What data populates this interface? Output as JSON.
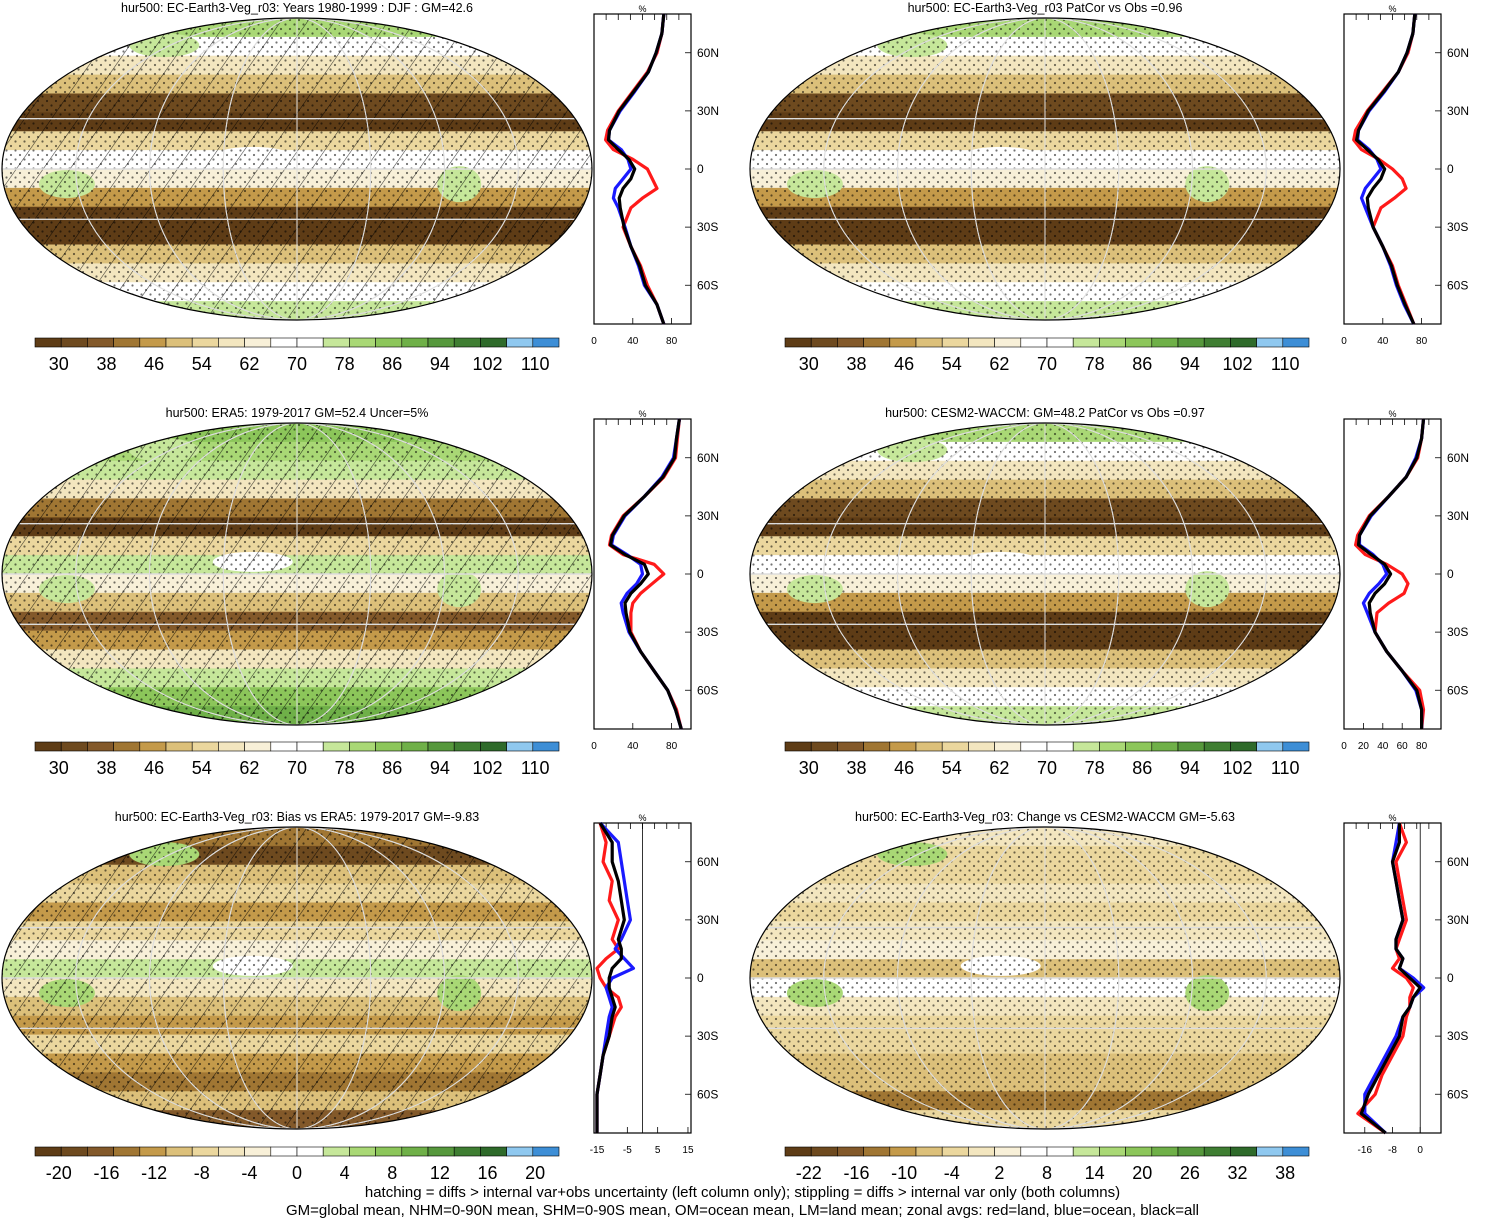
{
  "colors": {
    "red": "#ff1a1a",
    "blue": "#1a1aff",
    "black": "#000000",
    "frame": "#000000",
    "grid": "#cccccc"
  },
  "palette_abs": [
    "#5e3c16",
    "#6e4a1f",
    "#83592a",
    "#a07633",
    "#c49a4a",
    "#dcc07a",
    "#ebd79e",
    "#f3e6bf",
    "#f8f0d8",
    "#ffffff",
    "#ffffff",
    "#c6e79a",
    "#a9d875",
    "#8cc65a",
    "#6fb048",
    "#56983c",
    "#3f7e32",
    "#2e6a2a",
    "#8fc8ef",
    "#3d8ed6"
  ],
  "palette_diff": [
    "#5e3c16",
    "#6e4a1f",
    "#83592a",
    "#a07633",
    "#c49a4a",
    "#dcc07a",
    "#ebd79e",
    "#f3e6bf",
    "#f8f0d8",
    "#ffffff",
    "#ffffff",
    "#c6e79a",
    "#a9d875",
    "#8cc65a",
    "#6fb048",
    "#56983c",
    "#3f7e32",
    "#2e6a2a",
    "#8fc8ef",
    "#3d8ed6"
  ],
  "panels": [
    {
      "title": "hur500: EC-Earth3-Veg_r03: Years 1980-1999 : DJF : GM=42.6",
      "colorbar_ticks": [
        "30",
        "38",
        "46",
        "54",
        "62",
        "70",
        "78",
        "86",
        "94",
        "102",
        "110"
      ],
      "colorbar_kind": "abs",
      "map_style": "model_abs",
      "hatching": true
    },
    {
      "title": "hur500: EC-Earth3-Veg_r03 PatCor vs Obs =0.96",
      "colorbar_ticks": [
        "30",
        "38",
        "46",
        "54",
        "62",
        "70",
        "78",
        "86",
        "94",
        "102",
        "110"
      ],
      "colorbar_kind": "abs",
      "map_style": "model_abs",
      "hatching": false
    },
    {
      "title": "hur500: ERA5: 1979-2017 GM=52.4 Uncer=5%",
      "colorbar_ticks": [
        "30",
        "38",
        "46",
        "54",
        "62",
        "70",
        "78",
        "86",
        "94",
        "102",
        "110"
      ],
      "colorbar_kind": "abs",
      "map_style": "obs_abs",
      "hatching": true
    },
    {
      "title": "hur500: CESM2-WACCM: GM=48.2 PatCor vs Obs =0.97",
      "colorbar_ticks": [
        "30",
        "38",
        "46",
        "54",
        "62",
        "70",
        "78",
        "86",
        "94",
        "102",
        "110"
      ],
      "colorbar_kind": "abs",
      "map_style": "model_abs",
      "hatching": false
    },
    {
      "title": "hur500: EC-Earth3-Veg_r03: Bias vs ERA5: 1979-2017 GM=-9.83",
      "colorbar_ticks": [
        "-20",
        "-16",
        "-12",
        "-8",
        "-4",
        "0",
        "4",
        "8",
        "12",
        "16",
        "20"
      ],
      "colorbar_kind": "diff",
      "map_style": "bias",
      "hatching": true
    },
    {
      "title": "hur500: EC-Earth3-Veg_r03: Change vs CESM2-WACCM GM=-5.63",
      "colorbar_ticks": [
        "-22",
        "-16",
        "-10",
        "-4",
        "2",
        "8",
        "14",
        "20",
        "26",
        "32",
        "38"
      ],
      "colorbar_kind": "diff",
      "map_style": "change",
      "hatching": false
    }
  ],
  "chart_data": [
    {
      "type": "line",
      "title": "%",
      "y_tick_labels": [
        "60N",
        "30N",
        "0",
        "30S",
        "60S"
      ],
      "y_tick_lats": [
        60,
        30,
        0,
        -30,
        -60
      ],
      "x_tick_labels": [
        "0",
        "40",
        "80"
      ],
      "x_tick_values": [
        0,
        40,
        80
      ],
      "xlim": [
        0,
        100
      ],
      "ylim": [
        -80,
        80
      ],
      "lat": [
        80,
        70,
        60,
        50,
        40,
        30,
        20,
        15,
        10,
        5,
        0,
        -5,
        -10,
        -15,
        -20,
        -30,
        -40,
        -50,
        -60,
        -70,
        -80
      ],
      "series": [
        {
          "color_key": "red",
          "values": [
            72,
            70,
            65,
            55,
            40,
            25,
            14,
            12,
            20,
            40,
            55,
            60,
            65,
            50,
            38,
            30,
            38,
            48,
            55,
            65,
            72
          ]
        },
        {
          "color_key": "blue",
          "values": [
            72,
            70,
            64,
            56,
            42,
            27,
            16,
            15,
            28,
            35,
            38,
            30,
            22,
            20,
            25,
            32,
            38,
            46,
            52,
            65,
            72
          ]
        },
        {
          "color_key": "black",
          "values": [
            72,
            70,
            64,
            56,
            41,
            26,
            16,
            15,
            25,
            36,
            42,
            38,
            30,
            26,
            27,
            31,
            38,
            47,
            53,
            65,
            72
          ]
        }
      ]
    },
    {
      "type": "line",
      "title": "%",
      "y_tick_labels": [
        "60N",
        "30N",
        "0",
        "30S",
        "60S"
      ],
      "y_tick_lats": [
        60,
        30,
        0,
        -30,
        -60
      ],
      "x_tick_labels": [
        "0",
        "40",
        "80"
      ],
      "x_tick_values": [
        0,
        40,
        80
      ],
      "xlim": [
        0,
        100
      ],
      "ylim": [
        -80,
        80
      ],
      "lat": [
        80,
        70,
        60,
        50,
        40,
        30,
        20,
        15,
        10,
        5,
        0,
        -5,
        -10,
        -15,
        -20,
        -30,
        -40,
        -50,
        -60,
        -70,
        -80
      ],
      "series": [
        {
          "color_key": "red",
          "values": [
            73,
            71,
            66,
            56,
            40,
            24,
            12,
            10,
            18,
            36,
            50,
            60,
            64,
            52,
            38,
            30,
            40,
            50,
            56,
            64,
            72
          ]
        },
        {
          "color_key": "blue",
          "values": [
            73,
            71,
            65,
            56,
            42,
            26,
            15,
            14,
            26,
            34,
            38,
            30,
            22,
            18,
            22,
            30,
            40,
            48,
            54,
            62,
            72
          ]
        },
        {
          "color_key": "black",
          "values": [
            73,
            71,
            65,
            56,
            41,
            25,
            15,
            13,
            24,
            35,
            42,
            38,
            30,
            24,
            25,
            30,
            40,
            49,
            55,
            63,
            72
          ]
        }
      ]
    },
    {
      "type": "line",
      "title": "%",
      "y_tick_labels": [
        "60N",
        "30N",
        "0",
        "30S",
        "60S"
      ],
      "y_tick_lats": [
        60,
        30,
        0,
        -30,
        -60
      ],
      "x_tick_labels": [
        "0",
        "40",
        "80"
      ],
      "x_tick_values": [
        0,
        40,
        80
      ],
      "xlim": [
        0,
        100
      ],
      "ylim": [
        -80,
        80
      ],
      "lat": [
        80,
        70,
        60,
        50,
        40,
        30,
        20,
        15,
        10,
        5,
        0,
        -5,
        -10,
        -15,
        -20,
        -30,
        -40,
        -50,
        -60,
        -70,
        -80
      ],
      "series": [
        {
          "color_key": "red",
          "values": [
            88,
            86,
            84,
            72,
            52,
            30,
            18,
            16,
            30,
            62,
            72,
            60,
            48,
            40,
            38,
            38,
            48,
            62,
            76,
            85,
            90
          ]
        },
        {
          "color_key": "blue",
          "values": [
            88,
            85,
            82,
            70,
            52,
            32,
            20,
            18,
            34,
            48,
            50,
            44,
            34,
            28,
            30,
            36,
            48,
            62,
            76,
            84,
            90
          ]
        },
        {
          "color_key": "black",
          "values": [
            88,
            85,
            83,
            71,
            52,
            31,
            19,
            17,
            32,
            52,
            56,
            48,
            38,
            32,
            33,
            37,
            48,
            62,
            76,
            84,
            90
          ]
        }
      ]
    },
    {
      "type": "line",
      "title": "%",
      "y_tick_labels": [
        "60N",
        "30N",
        "0",
        "30S",
        "60S"
      ],
      "y_tick_lats": [
        60,
        30,
        0,
        -30,
        -60
      ],
      "x_tick_labels": [
        "0",
        "20",
        "40",
        "60",
        "80"
      ],
      "x_tick_values": [
        0,
        20,
        40,
        60,
        80
      ],
      "xlim": [
        0,
        100
      ],
      "ylim": [
        -80,
        80
      ],
      "lat": [
        80,
        70,
        60,
        50,
        40,
        30,
        20,
        15,
        10,
        5,
        0,
        -5,
        -10,
        -15,
        -20,
        -30,
        -40,
        -50,
        -60,
        -70,
        -80
      ],
      "series": [
        {
          "color_key": "red",
          "values": [
            82,
            80,
            76,
            64,
            46,
            26,
            14,
            12,
            22,
            44,
            60,
            66,
            62,
            46,
            34,
            32,
            44,
            60,
            78,
            82,
            80
          ]
        },
        {
          "color_key": "blue",
          "values": [
            82,
            80,
            74,
            64,
            46,
            28,
            16,
            16,
            30,
            40,
            44,
            36,
            26,
            20,
            24,
            32,
            44,
            60,
            74,
            80,
            80
          ]
        },
        {
          "color_key": "black",
          "values": [
            82,
            80,
            75,
            64,
            46,
            27,
            16,
            15,
            28,
            42,
            48,
            42,
            32,
            26,
            27,
            32,
            44,
            60,
            75,
            80,
            80
          ]
        }
      ]
    },
    {
      "type": "line",
      "title": "%",
      "y_tick_labels": [
        "60N",
        "30N",
        "0",
        "30S",
        "60S"
      ],
      "y_tick_lats": [
        60,
        30,
        0,
        -30,
        -60
      ],
      "x_tick_labels": [
        "-15",
        "-5",
        "5",
        "15"
      ],
      "x_tick_values": [
        -15,
        -5,
        5,
        15
      ],
      "xlim": [
        -16,
        16
      ],
      "ylim": [
        -80,
        80
      ],
      "lat": [
        80,
        70,
        60,
        50,
        40,
        30,
        20,
        15,
        10,
        5,
        0,
        -5,
        -10,
        -15,
        -20,
        -30,
        -40,
        -50,
        -60,
        -70,
        -80
      ],
      "series": [
        {
          "color_key": "red",
          "values": [
            -14,
            -12,
            -13,
            -10,
            -11,
            -8,
            -10,
            -8,
            -12,
            -15,
            -14,
            -12,
            -8,
            -7,
            -9,
            -11,
            -13,
            -14,
            -15,
            -15,
            -15
          ]
        },
        {
          "color_key": "blue",
          "values": [
            -14,
            -8,
            -7,
            -6,
            -5,
            -4,
            -7,
            -9,
            -6,
            -3,
            -10,
            -12,
            -11,
            -10,
            -11,
            -12,
            -13,
            -14,
            -15,
            -15,
            -15
          ]
        },
        {
          "color_key": "black",
          "values": [
            -14,
            -10,
            -10,
            -8,
            -7,
            -6,
            -8,
            -7,
            -7,
            -10,
            -11,
            -11,
            -10,
            -9,
            -10,
            -11,
            -13,
            -14,
            -15,
            -15,
            -15
          ]
        }
      ]
    },
    {
      "type": "line",
      "title": "%",
      "y_tick_labels": [
        "60N",
        "30N",
        "0",
        "30S",
        "60S"
      ],
      "y_tick_lats": [
        60,
        30,
        0,
        -30,
        -60
      ],
      "x_tick_labels": [
        "-16",
        "-8",
        "0"
      ],
      "x_tick_values": [
        -16,
        -8,
        0
      ],
      "xlim": [
        -22,
        6
      ],
      "ylim": [
        -80,
        80
      ],
      "lat": [
        80,
        70,
        60,
        50,
        40,
        30,
        20,
        15,
        10,
        5,
        0,
        -5,
        -10,
        -15,
        -20,
        -30,
        -40,
        -50,
        -60,
        -70,
        -80
      ],
      "series": [
        {
          "color_key": "red",
          "values": [
            -6,
            -4,
            -7,
            -6,
            -5,
            -4,
            -6,
            -7,
            -6,
            -8,
            -4,
            -2,
            -3,
            -3,
            -4,
            -5,
            -8,
            -11,
            -13,
            -18,
            -10
          ]
        },
        {
          "color_key": "blue",
          "values": [
            -6,
            -7,
            -8,
            -7,
            -6,
            -5,
            -7,
            -7,
            -5,
            -6,
            -2,
            1,
            -2,
            -3,
            -5,
            -7,
            -10,
            -13,
            -16,
            -16,
            -10
          ]
        },
        {
          "color_key": "black",
          "values": [
            -6,
            -6,
            -8,
            -7,
            -6,
            -5,
            -7,
            -7,
            -5,
            -6,
            -3,
            0,
            -2,
            -3,
            -5,
            -6,
            -9,
            -12,
            -15,
            -17,
            -10
          ]
        }
      ]
    }
  ],
  "footer": {
    "line1": "hatching = diffs > internal var+obs uncertainty (left column only); stippling = diffs > internal var only (both columns)",
    "line2": "GM=global mean, NHM=0-90N mean, SHM=0-90S mean, OM=ocean mean, LM=land mean; zonal avgs: red=land, blue=ocean, black=all"
  }
}
